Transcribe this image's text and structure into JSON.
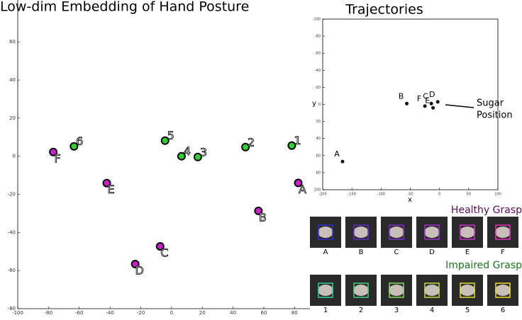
{
  "chart_data": [
    {
      "type": "scatter",
      "title": "Low-dim Embedding of Hand Posture",
      "xlim": [
        -100,
        90
      ],
      "ylim": [
        -80,
        82
      ],
      "xticks": [
        -100,
        -80,
        -60,
        -40,
        -20,
        0,
        20,
        40,
        60,
        80
      ],
      "yticks": [
        -80,
        -60,
        -40,
        -20,
        0,
        20,
        40,
        60
      ],
      "series": [
        {
          "color": "#d01ccf",
          "labels": [
            "A",
            "B",
            "C",
            "D",
            "E",
            "F"
          ],
          "x": [
            82.4,
            56.5,
            -7.4,
            -23.6,
            -42.1,
            -76.9
          ],
          "values": [
            -14,
            -28.7,
            -47.3,
            -56.6,
            -14.1,
            2.2
          ]
        },
        {
          "color": "#2fd12f",
          "labels": [
            "1",
            "2",
            "3",
            "4",
            "5",
            "6"
          ],
          "x": [
            78.2,
            48.1,
            17.1,
            6.5,
            -4.2,
            -63.4
          ],
          "values": [
            5.6,
            4.8,
            -0.4,
            0,
            8.2,
            5.2
          ]
        }
      ]
    },
    {
      "type": "scatter",
      "title": "Trajectories",
      "xlabel": "x",
      "ylabel": "y",
      "xlim": [
        -200,
        100
      ],
      "ylim": [
        -100,
        100
      ],
      "y_inverted": true,
      "xticks": [
        -200,
        -150,
        -100,
        -50,
        0,
        50,
        100
      ],
      "yticks": [
        -100,
        -80,
        -60,
        -40,
        -20,
        0,
        20,
        40,
        60,
        80,
        100
      ],
      "annotation": [
        "Sugar",
        "Position"
      ],
      "series": [
        {
          "color": "#111111",
          "labels": [
            "A",
            "B",
            "C",
            "D",
            "E",
            "F"
          ],
          "x": [
            -166,
            -56,
            -14,
            -3,
            -11,
            -25
          ],
          "values": [
            67,
            -1,
            -1,
            -3,
            4,
            2
          ]
        }
      ]
    }
  ],
  "panels": [
    {
      "title": "Healthy Grasp",
      "labels": [
        "A",
        "B",
        "C",
        "D",
        "E",
        "F"
      ]
    },
    {
      "title": "Impaired Grasp",
      "labels": [
        "1",
        "2",
        "3",
        "4",
        "5",
        "6"
      ]
    }
  ]
}
